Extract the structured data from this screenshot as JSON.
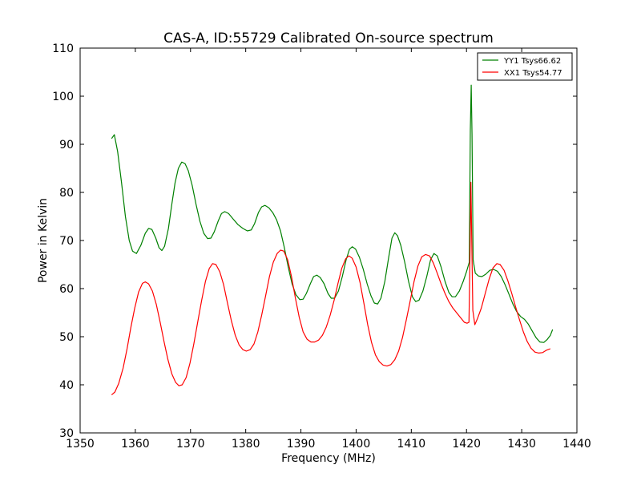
{
  "chart_data": {
    "type": "line",
    "title": "CAS-A, ID:55729 Calibrated On-source spectrum",
    "xlabel": "Frequency (MHz)",
    "ylabel": "Power in Kelvin",
    "xlim": [
      1350,
      1440
    ],
    "ylim": [
      30,
      110
    ],
    "x_ticks": [
      1350,
      1360,
      1370,
      1380,
      1390,
      1400,
      1410,
      1420,
      1430,
      1440
    ],
    "y_ticks": [
      30,
      40,
      50,
      60,
      70,
      80,
      90,
      100,
      110
    ],
    "grid": false,
    "legend_position": "top-right",
    "series": [
      {
        "name": "YY1 Tsys66.62",
        "color": "#008000",
        "points": [
          [
            1355.7,
            91.2
          ],
          [
            1356.2,
            92.0
          ],
          [
            1356.8,
            88.5
          ],
          [
            1357.5,
            82.0
          ],
          [
            1358.2,
            75.0
          ],
          [
            1358.9,
            70.0
          ],
          [
            1359.5,
            67.8
          ],
          [
            1360.2,
            67.3
          ],
          [
            1361.0,
            69.0
          ],
          [
            1361.8,
            71.5
          ],
          [
            1362.4,
            72.5
          ],
          [
            1363.0,
            72.3
          ],
          [
            1363.7,
            70.5
          ],
          [
            1364.3,
            68.5
          ],
          [
            1364.8,
            67.9
          ],
          [
            1365.3,
            68.8
          ],
          [
            1366.0,
            72.5
          ],
          [
            1366.6,
            77.5
          ],
          [
            1367.2,
            82.0
          ],
          [
            1367.8,
            85.0
          ],
          [
            1368.4,
            86.3
          ],
          [
            1369.0,
            86.0
          ],
          [
            1369.6,
            84.5
          ],
          [
            1370.3,
            81.5
          ],
          [
            1371.0,
            77.5
          ],
          [
            1371.7,
            74.0
          ],
          [
            1372.4,
            71.5
          ],
          [
            1373.1,
            70.4
          ],
          [
            1373.7,
            70.5
          ],
          [
            1374.3,
            71.8
          ],
          [
            1375.0,
            74.0
          ],
          [
            1375.6,
            75.6
          ],
          [
            1376.2,
            76.0
          ],
          [
            1376.9,
            75.6
          ],
          [
            1377.7,
            74.5
          ],
          [
            1378.6,
            73.3
          ],
          [
            1379.5,
            72.5
          ],
          [
            1380.3,
            72.0
          ],
          [
            1381.0,
            72.2
          ],
          [
            1381.6,
            73.5
          ],
          [
            1382.3,
            75.8
          ],
          [
            1382.9,
            77.0
          ],
          [
            1383.5,
            77.3
          ],
          [
            1384.2,
            76.8
          ],
          [
            1384.9,
            75.8
          ],
          [
            1385.6,
            74.3
          ],
          [
            1386.3,
            72.0
          ],
          [
            1387.0,
            68.5
          ],
          [
            1387.7,
            64.5
          ],
          [
            1388.4,
            61.0
          ],
          [
            1389.1,
            58.7
          ],
          [
            1389.8,
            57.7
          ],
          [
            1390.4,
            57.8
          ],
          [
            1391.0,
            59.0
          ],
          [
            1391.7,
            61.0
          ],
          [
            1392.3,
            62.5
          ],
          [
            1392.9,
            62.8
          ],
          [
            1393.5,
            62.3
          ],
          [
            1394.2,
            61.0
          ],
          [
            1394.9,
            59.0
          ],
          [
            1395.5,
            58.0
          ],
          [
            1396.1,
            58.0
          ],
          [
            1396.8,
            59.5
          ],
          [
            1397.5,
            62.5
          ],
          [
            1398.2,
            66.0
          ],
          [
            1398.8,
            68.2
          ],
          [
            1399.3,
            68.7
          ],
          [
            1399.9,
            68.2
          ],
          [
            1400.6,
            66.5
          ],
          [
            1401.3,
            64.0
          ],
          [
            1402.0,
            61.0
          ],
          [
            1402.7,
            58.5
          ],
          [
            1403.3,
            57.0
          ],
          [
            1403.9,
            56.8
          ],
          [
            1404.5,
            58.0
          ],
          [
            1405.2,
            61.5
          ],
          [
            1405.9,
            66.5
          ],
          [
            1406.5,
            70.5
          ],
          [
            1407.0,
            71.6
          ],
          [
            1407.5,
            71.0
          ],
          [
            1408.1,
            69.0
          ],
          [
            1408.8,
            65.5
          ],
          [
            1409.5,
            61.5
          ],
          [
            1410.2,
            58.3
          ],
          [
            1410.8,
            57.3
          ],
          [
            1411.4,
            57.6
          ],
          [
            1412.1,
            59.5
          ],
          [
            1412.8,
            62.5
          ],
          [
            1413.5,
            66.0
          ],
          [
            1414.1,
            67.3
          ],
          [
            1414.7,
            66.8
          ],
          [
            1415.4,
            64.5
          ],
          [
            1416.1,
            61.5
          ],
          [
            1416.8,
            59.2
          ],
          [
            1417.4,
            58.3
          ],
          [
            1418.0,
            58.3
          ],
          [
            1418.7,
            59.5
          ],
          [
            1419.4,
            61.5
          ],
          [
            1420.0,
            63.5
          ],
          [
            1420.5,
            65.5
          ],
          [
            1420.7,
            93.0
          ],
          [
            1420.85,
            102.3
          ],
          [
            1421.0,
            92.0
          ],
          [
            1421.2,
            66.0
          ],
          [
            1421.6,
            63.2
          ],
          [
            1422.2,
            62.6
          ],
          [
            1422.8,
            62.5
          ],
          [
            1423.5,
            63.0
          ],
          [
            1424.2,
            63.8
          ],
          [
            1424.9,
            64.0
          ],
          [
            1425.6,
            63.6
          ],
          [
            1426.3,
            62.5
          ],
          [
            1427.0,
            60.8
          ],
          [
            1427.7,
            58.8
          ],
          [
            1428.4,
            56.8
          ],
          [
            1429.1,
            55.2
          ],
          [
            1429.8,
            54.2
          ],
          [
            1430.5,
            53.6
          ],
          [
            1431.2,
            52.6
          ],
          [
            1431.9,
            51.2
          ],
          [
            1432.6,
            49.8
          ],
          [
            1433.3,
            48.9
          ],
          [
            1434.0,
            48.8
          ],
          [
            1434.6,
            49.4
          ],
          [
            1435.2,
            50.3
          ],
          [
            1435.6,
            51.5
          ]
        ]
      },
      {
        "name": "XX1 Tsys54.77",
        "color": "#ff0000",
        "points": [
          [
            1355.7,
            37.9
          ],
          [
            1356.3,
            38.5
          ],
          [
            1357.0,
            40.3
          ],
          [
            1357.8,
            43.5
          ],
          [
            1358.5,
            47.5
          ],
          [
            1359.2,
            52.0
          ],
          [
            1359.9,
            56.0
          ],
          [
            1360.6,
            59.3
          ],
          [
            1361.3,
            61.1
          ],
          [
            1361.8,
            61.4
          ],
          [
            1362.4,
            61.0
          ],
          [
            1363.1,
            59.5
          ],
          [
            1363.8,
            56.7
          ],
          [
            1364.5,
            53.0
          ],
          [
            1365.2,
            49.0
          ],
          [
            1365.9,
            45.3
          ],
          [
            1366.6,
            42.3
          ],
          [
            1367.3,
            40.5
          ],
          [
            1367.9,
            39.8
          ],
          [
            1368.5,
            40.0
          ],
          [
            1369.2,
            41.5
          ],
          [
            1369.9,
            44.5
          ],
          [
            1370.6,
            48.5
          ],
          [
            1371.3,
            53.0
          ],
          [
            1372.0,
            57.5
          ],
          [
            1372.7,
            61.5
          ],
          [
            1373.4,
            64.2
          ],
          [
            1374.0,
            65.2
          ],
          [
            1374.6,
            65.0
          ],
          [
            1375.3,
            63.5
          ],
          [
            1376.0,
            60.8
          ],
          [
            1376.7,
            57.0
          ],
          [
            1377.4,
            53.3
          ],
          [
            1378.1,
            50.3
          ],
          [
            1378.8,
            48.3
          ],
          [
            1379.5,
            47.3
          ],
          [
            1380.1,
            47.0
          ],
          [
            1380.8,
            47.3
          ],
          [
            1381.5,
            48.5
          ],
          [
            1382.2,
            51.0
          ],
          [
            1382.9,
            54.5
          ],
          [
            1383.6,
            58.5
          ],
          [
            1384.3,
            62.5
          ],
          [
            1385.0,
            65.5
          ],
          [
            1385.7,
            67.3
          ],
          [
            1386.3,
            68.0
          ],
          [
            1386.9,
            67.8
          ],
          [
            1387.6,
            66.0
          ],
          [
            1388.3,
            62.5
          ],
          [
            1389.0,
            58.0
          ],
          [
            1389.7,
            54.0
          ],
          [
            1390.4,
            51.0
          ],
          [
            1391.1,
            49.5
          ],
          [
            1391.8,
            48.9
          ],
          [
            1392.5,
            48.9
          ],
          [
            1393.2,
            49.3
          ],
          [
            1393.9,
            50.3
          ],
          [
            1394.6,
            52.0
          ],
          [
            1395.3,
            54.5
          ],
          [
            1396.0,
            57.5
          ],
          [
            1396.7,
            61.0
          ],
          [
            1397.4,
            64.2
          ],
          [
            1398.1,
            66.2
          ],
          [
            1398.7,
            66.8
          ],
          [
            1399.3,
            66.3
          ],
          [
            1400.0,
            64.5
          ],
          [
            1400.7,
            61.3
          ],
          [
            1401.4,
            57.0
          ],
          [
            1402.1,
            52.5
          ],
          [
            1402.8,
            48.8
          ],
          [
            1403.5,
            46.2
          ],
          [
            1404.2,
            44.8
          ],
          [
            1404.9,
            44.1
          ],
          [
            1405.6,
            43.9
          ],
          [
            1406.3,
            44.2
          ],
          [
            1407.0,
            45.2
          ],
          [
            1407.7,
            47.0
          ],
          [
            1408.4,
            49.8
          ],
          [
            1409.1,
            53.5
          ],
          [
            1409.8,
            57.5
          ],
          [
            1410.5,
            61.5
          ],
          [
            1411.2,
            64.7
          ],
          [
            1411.9,
            66.6
          ],
          [
            1412.6,
            67.1
          ],
          [
            1413.3,
            66.8
          ],
          [
            1414.0,
            65.3
          ],
          [
            1414.7,
            63.2
          ],
          [
            1415.4,
            61.0
          ],
          [
            1416.1,
            59.0
          ],
          [
            1416.8,
            57.3
          ],
          [
            1417.5,
            56.0
          ],
          [
            1418.2,
            55.0
          ],
          [
            1418.9,
            54.0
          ],
          [
            1419.6,
            53.0
          ],
          [
            1420.1,
            52.8
          ],
          [
            1420.45,
            53.0
          ],
          [
            1420.65,
            68.0
          ],
          [
            1420.8,
            82.1
          ],
          [
            1420.95,
            70.0
          ],
          [
            1421.15,
            55.5
          ],
          [
            1421.5,
            52.5
          ],
          [
            1422.0,
            53.8
          ],
          [
            1422.7,
            56.0
          ],
          [
            1423.4,
            59.0
          ],
          [
            1424.1,
            62.0
          ],
          [
            1424.8,
            64.3
          ],
          [
            1425.5,
            65.2
          ],
          [
            1426.1,
            65.0
          ],
          [
            1426.8,
            63.8
          ],
          [
            1427.5,
            61.6
          ],
          [
            1428.2,
            59.0
          ],
          [
            1428.9,
            56.2
          ],
          [
            1429.6,
            53.5
          ],
          [
            1430.3,
            51.0
          ],
          [
            1431.0,
            49.0
          ],
          [
            1431.7,
            47.6
          ],
          [
            1432.4,
            46.8
          ],
          [
            1433.1,
            46.6
          ],
          [
            1433.8,
            46.7
          ],
          [
            1434.5,
            47.2
          ],
          [
            1435.2,
            47.5
          ]
        ]
      }
    ]
  }
}
